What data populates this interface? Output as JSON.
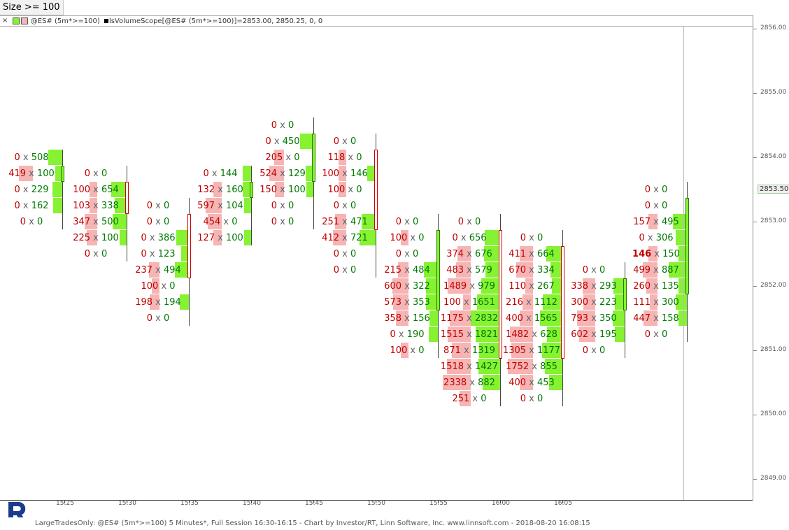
{
  "filter_label": "Size >= 100",
  "legend": {
    "close_glyph": "×",
    "symbol": "@ES# (5m*>=100)",
    "study": "lsVolumeScope[@ES# (5m*>=100)]=2853.00, 2850.25, 0, 0"
  },
  "footer": "LargeTradesOnly: @ES# (5m*>=100) 5 Minutes*, Full Session 16:30-16:15 - Chart by Investor/RT, Linn Software, Inc. www.linnsoft.com - 2018-08-20 16:08:15",
  "price_axis": {
    "labels": [
      "2856.00",
      "2855.00",
      "2854.00",
      "2853.00",
      "2852.00",
      "2851.00",
      "2850.00",
      "2849.00"
    ],
    "current": "2853.50"
  },
  "time_axis": [
    "15:25",
    "15:30",
    "15:35",
    "15:40",
    "15:45",
    "15:50",
    "15:55",
    "16:00",
    "16:05"
  ],
  "colors": {
    "bid_box": "#f7b4b4",
    "ask_box": "#86f232",
    "bid_text": "#c00000",
    "ask_text": "#007a00"
  },
  "chart_data": {
    "type": "table",
    "price_levels": [
      2854.5,
      2854.25,
      2854.0,
      2853.75,
      2853.5,
      2853.25,
      2853.0,
      2852.75,
      2852.5,
      2852.25,
      2852.0,
      2851.75,
      2851.5,
      2851.25,
      2851.0,
      2850.75,
      2850.5,
      2850.25
    ],
    "bars": [
      {
        "rows": [
          [
            2854.0,
            "0",
            "508"
          ],
          [
            2853.75,
            "419",
            "100"
          ],
          [
            2853.5,
            "0",
            "229"
          ],
          [
            2853.25,
            "0",
            "162"
          ],
          [
            2853.0,
            "0",
            "0"
          ]
        ]
      },
      {
        "rows": [
          [
            2853.75,
            "0",
            "0"
          ],
          [
            2853.5,
            "100",
            "654"
          ],
          [
            2853.25,
            "103",
            "338"
          ],
          [
            2853.0,
            "347",
            "500"
          ],
          [
            2852.75,
            "225",
            "100"
          ],
          [
            2852.5,
            "0",
            "0"
          ]
        ]
      },
      {
        "rows": [
          [
            2853.25,
            "0",
            "0"
          ],
          [
            2853.0,
            "0",
            "0"
          ],
          [
            2852.75,
            "0",
            "386"
          ],
          [
            2852.5,
            "0",
            "123"
          ],
          [
            2852.25,
            "237",
            "494"
          ],
          [
            2852.0,
            "100",
            "0"
          ],
          [
            2851.75,
            "198",
            "194"
          ],
          [
            2851.5,
            "0",
            "0"
          ]
        ]
      },
      {
        "rows": [
          [
            2853.75,
            "0",
            "144"
          ],
          [
            2853.5,
            "132",
            "160"
          ],
          [
            2853.25,
            "597",
            "104"
          ],
          [
            2853.0,
            "454",
            "0"
          ],
          [
            2852.75,
            "127",
            "100"
          ]
        ]
      },
      {
        "rows": [
          [
            2854.5,
            "0",
            "0"
          ],
          [
            2854.25,
            "0",
            "450"
          ],
          [
            2854.0,
            "205",
            "0"
          ],
          [
            2853.75,
            "524",
            "129"
          ],
          [
            2853.5,
            "150",
            "100"
          ],
          [
            2853.25,
            "0",
            "0"
          ],
          [
            2853.0,
            "0",
            "0"
          ]
        ]
      },
      {
        "rows": [
          [
            2854.25,
            "0",
            "0"
          ],
          [
            2854.0,
            "118",
            "0"
          ],
          [
            2853.75,
            "100",
            "146"
          ],
          [
            2853.5,
            "100",
            "0"
          ],
          [
            2853.25,
            "0",
            "0"
          ],
          [
            2853.0,
            "251",
            "471"
          ],
          [
            2852.75,
            "412",
            "721"
          ],
          [
            2852.5,
            "0",
            "0"
          ],
          [
            2852.25,
            "0",
            "0"
          ]
        ]
      },
      {
        "rows": [
          [
            2853.0,
            "0",
            "0"
          ],
          [
            2852.75,
            "100",
            "0"
          ],
          [
            2852.5,
            "0",
            "0"
          ],
          [
            2852.25,
            "215",
            "484"
          ],
          [
            2852.0,
            "600",
            "322"
          ],
          [
            2851.75,
            "573",
            "353"
          ],
          [
            2851.5,
            "358",
            "156"
          ],
          [
            2851.25,
            "0",
            "190"
          ],
          [
            2851.0,
            "100",
            "0"
          ]
        ]
      },
      {
        "rows": [
          [
            2853.0,
            "0",
            "0"
          ],
          [
            2852.75,
            "0",
            "656"
          ],
          [
            2852.5,
            "374",
            "676"
          ],
          [
            2852.25,
            "483",
            "579"
          ],
          [
            2852.0,
            "1489",
            "979"
          ],
          [
            2851.75,
            "100",
            "1651"
          ],
          [
            2851.5,
            "1175",
            "2832"
          ],
          [
            2851.25,
            "1515",
            "1821"
          ],
          [
            2851.0,
            "871",
            "1319"
          ],
          [
            2850.75,
            "1518",
            "1427"
          ],
          [
            2850.5,
            "2338",
            "882"
          ],
          [
            2850.25,
            "251",
            "0"
          ]
        ]
      },
      {
        "rows": [
          [
            2852.75,
            "0",
            "0"
          ],
          [
            2852.5,
            "411",
            "664"
          ],
          [
            2852.25,
            "670",
            "334"
          ],
          [
            2852.0,
            "110",
            "267"
          ],
          [
            2851.75,
            "216",
            "1112"
          ],
          [
            2851.5,
            "400",
            "1565"
          ],
          [
            2851.25,
            "1482",
            "628"
          ],
          [
            2851.0,
            "1305",
            "1177"
          ],
          [
            2850.75,
            "1752",
            "855"
          ],
          [
            2850.5,
            "400",
            "453"
          ],
          [
            2850.25,
            "0",
            "0"
          ]
        ]
      },
      {
        "rows": [
          [
            2852.25,
            "0",
            "0"
          ],
          [
            2852.0,
            "338",
            "293"
          ],
          [
            2851.75,
            "300",
            "223"
          ],
          [
            2851.5,
            "793",
            "350"
          ],
          [
            2851.25,
            "602",
            "195"
          ],
          [
            2851.0,
            "0",
            "0"
          ]
        ]
      },
      {
        "rows": [
          [
            2853.5,
            "0",
            "0"
          ],
          [
            2853.25,
            "0",
            "0"
          ],
          [
            2853.0,
            "157",
            "495"
          ],
          [
            2852.75,
            "0",
            "306"
          ],
          [
            2852.5,
            "146",
            "150"
          ],
          [
            2852.25,
            "499",
            "887"
          ],
          [
            2852.0,
            "260",
            "135"
          ],
          [
            2851.75,
            "111",
            "300"
          ],
          [
            2851.5,
            "447",
            "158"
          ],
          [
            2851.25,
            "0",
            "0"
          ]
        ]
      }
    ]
  }
}
